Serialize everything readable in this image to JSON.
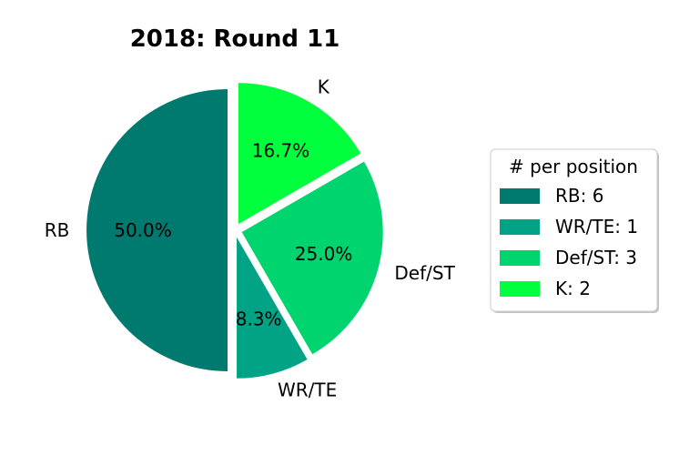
{
  "chart_data": {
    "type": "pie",
    "title": "2018: Round 11",
    "slices": [
      {
        "label": "RB",
        "value": 6,
        "percent_label": "50.0%",
        "color": "#00796f"
      },
      {
        "label": "WR/TE",
        "value": 1,
        "percent_label": "8.3%",
        "color": "#00a385"
      },
      {
        "label": "Def/ST",
        "value": 3,
        "percent_label": "25.0%",
        "color": "#00d46e"
      },
      {
        "label": "K",
        "value": 2,
        "percent_label": "16.7%",
        "color": "#00ff3c"
      }
    ],
    "start_angle_deg": 90,
    "direction": "counterclockwise",
    "exploded": true,
    "legend": {
      "title": "# per position",
      "placement": "right",
      "entries": [
        "RB: 6",
        "WR/TE: 1",
        "Def/ST: 3",
        "K: 2"
      ]
    }
  }
}
